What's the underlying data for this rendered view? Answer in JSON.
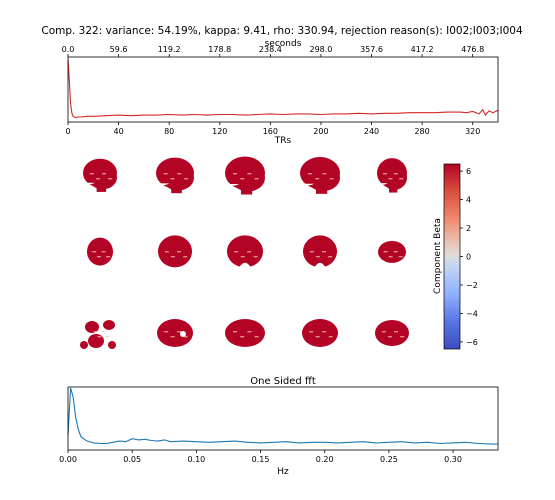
{
  "title": "Comp. 322: variance: 54.19%, kappa: 9.41, rho: 330.94, rejection reason(s): I002;I003;I004",
  "chart_data": [
    {
      "type": "line",
      "name": "timeseries",
      "xlabel": "TRs",
      "x2label": "seconds",
      "xlim": [
        0,
        340
      ],
      "xticks": [
        0,
        40,
        80,
        120,
        160,
        200,
        240,
        280,
        320
      ],
      "x2ticks": [
        "0.0",
        "59.6",
        "119.2",
        "178.8",
        "238.4",
        "298.0",
        "357.6",
        "417.2",
        "476.8"
      ],
      "x2_per_tr": 1.49,
      "color": "#d62728",
      "x": [
        0,
        1,
        2,
        3,
        4,
        5,
        6,
        8,
        10,
        15,
        20,
        30,
        40,
        50,
        60,
        70,
        80,
        90,
        100,
        110,
        120,
        130,
        140,
        150,
        160,
        170,
        180,
        190,
        200,
        210,
        220,
        230,
        240,
        250,
        260,
        270,
        280,
        290,
        300,
        310,
        315,
        320,
        325,
        328,
        330,
        333,
        336,
        340
      ],
      "y": [
        1.0,
        0.65,
        0.28,
        0.12,
        0.06,
        0.05,
        0.04,
        0.05,
        0.05,
        0.06,
        0.06,
        0.07,
        0.08,
        0.07,
        0.08,
        0.08,
        0.09,
        0.08,
        0.09,
        0.08,
        0.09,
        0.09,
        0.08,
        0.09,
        0.1,
        0.09,
        0.1,
        0.1,
        0.09,
        0.1,
        0.1,
        0.11,
        0.1,
        0.11,
        0.11,
        0.12,
        0.12,
        0.12,
        0.13,
        0.13,
        0.12,
        0.14,
        0.1,
        0.17,
        0.08,
        0.15,
        0.12,
        0.16
      ]
    },
    {
      "type": "heatmap",
      "name": "component-beta-maps",
      "colorbar_label": "Component Beta",
      "colormap": "coolwarm",
      "vmin": -6.5,
      "vmax": 6.5,
      "colorbar_ticks": [
        6,
        4,
        2,
        0,
        -2,
        -4,
        -6
      ],
      "colorbar_ticklabels": [
        "6",
        "4",
        "2",
        "0",
        "−2",
        "−4",
        "−6"
      ],
      "dominant_color": "#b40426",
      "views": [
        "sagittal",
        "coronal",
        "axial"
      ],
      "slices_per_view": 5
    },
    {
      "type": "line",
      "name": "fft",
      "title": "One Sided fft",
      "xlabel": "Hz",
      "xlim": [
        0,
        0.335
      ],
      "xticks": [
        "0.00",
        "0.05",
        "0.10",
        "0.15",
        "0.20",
        "0.25",
        "0.30"
      ],
      "color": "#1f77b4",
      "x": [
        0,
        0.002,
        0.004,
        0.006,
        0.008,
        0.01,
        0.012,
        0.015,
        0.02,
        0.025,
        0.03,
        0.035,
        0.04,
        0.045,
        0.05,
        0.055,
        0.06,
        0.065,
        0.07,
        0.075,
        0.08,
        0.09,
        0.1,
        0.11,
        0.12,
        0.13,
        0.14,
        0.15,
        0.16,
        0.17,
        0.18,
        0.19,
        0.2,
        0.21,
        0.22,
        0.23,
        0.24,
        0.25,
        0.26,
        0.27,
        0.28,
        0.29,
        0.3,
        0.31,
        0.32,
        0.33,
        0.335
      ],
      "y": [
        0.2,
        1.0,
        0.85,
        0.5,
        0.3,
        0.18,
        0.14,
        0.1,
        0.07,
        0.06,
        0.06,
        0.08,
        0.1,
        0.09,
        0.14,
        0.12,
        0.13,
        0.11,
        0.1,
        0.12,
        0.09,
        0.1,
        0.09,
        0.08,
        0.09,
        0.1,
        0.08,
        0.07,
        0.08,
        0.09,
        0.07,
        0.08,
        0.08,
        0.07,
        0.08,
        0.09,
        0.07,
        0.08,
        0.09,
        0.07,
        0.08,
        0.06,
        0.07,
        0.08,
        0.06,
        0.05,
        0.05
      ]
    }
  ]
}
